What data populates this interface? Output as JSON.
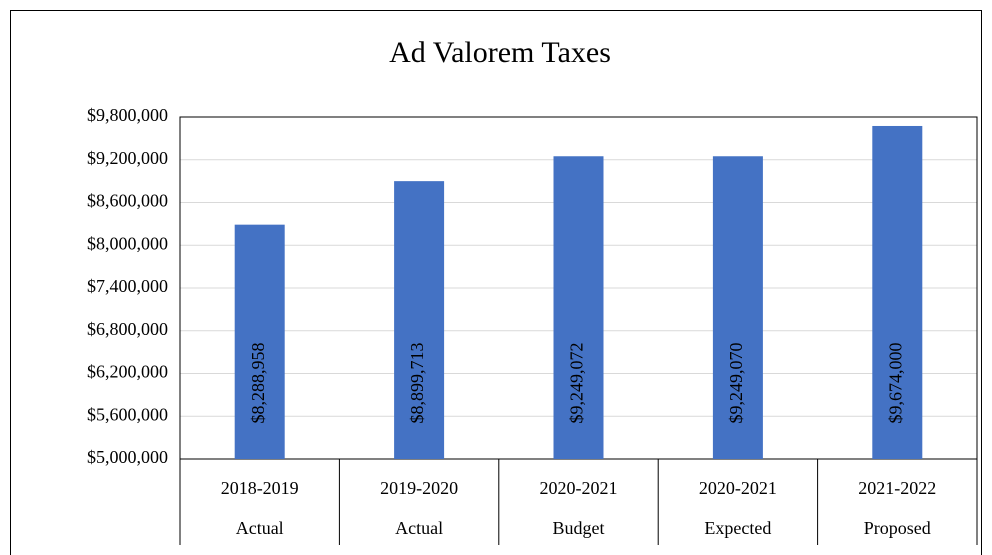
{
  "chart_data": {
    "type": "bar",
    "title": "Ad Valorem Taxes",
    "categories": [
      [
        "2018-2019",
        "Actual"
      ],
      [
        "2019-2020",
        "Actual"
      ],
      [
        "2020-2021",
        "Budget"
      ],
      [
        "2020-2021",
        "Expected"
      ],
      [
        "2021-2022",
        "Proposed"
      ]
    ],
    "values": [
      8288958,
      8899713,
      9249072,
      9249070,
      9674000
    ],
    "value_labels": [
      "$8,288,958",
      "$8,899,713",
      "$9,249,072",
      "$9,249,070",
      "$9,674,000"
    ],
    "color": "#4472c4",
    "ylim": [
      5000000,
      9800000
    ],
    "yticks": [
      {
        "value": 5000000,
        "label": "$5,000,000"
      },
      {
        "value": 5600000,
        "label": "$5,600,000"
      },
      {
        "value": 6200000,
        "label": "$6,200,000"
      },
      {
        "value": 6800000,
        "label": "$6,800,000"
      },
      {
        "value": 7400000,
        "label": "$7,400,000"
      },
      {
        "value": 8000000,
        "label": "$8,000,000"
      },
      {
        "value": 8600000,
        "label": "$8,600,000"
      },
      {
        "value": 9200000,
        "label": "$9,200,000"
      },
      {
        "value": 9800000,
        "label": "$9,800,000"
      }
    ],
    "grid": true
  }
}
